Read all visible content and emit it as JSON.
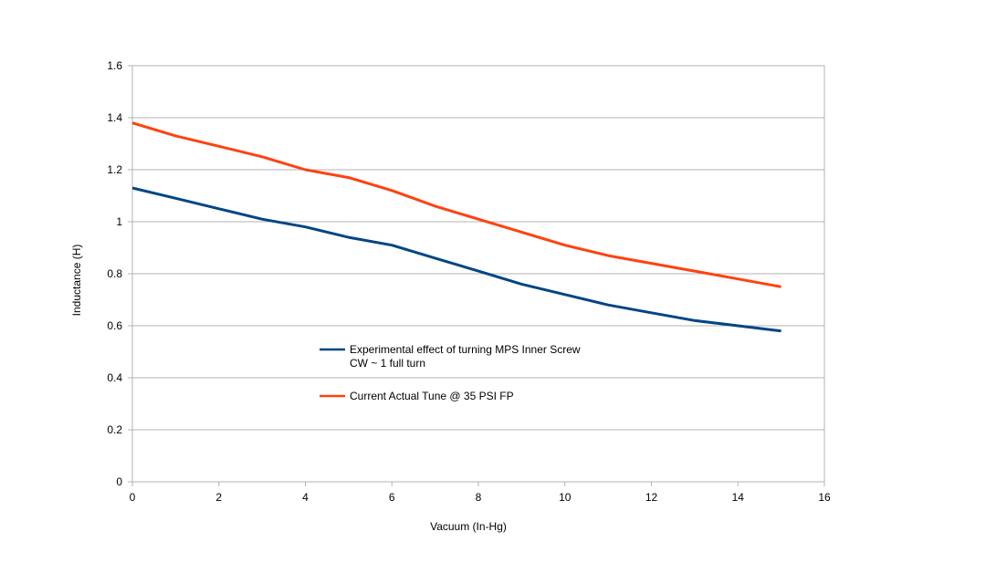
{
  "chart_data": {
    "type": "line",
    "title": "",
    "xlabel": "Vacuum (In-Hg)",
    "ylabel": "Inductance (H)",
    "xlim": [
      0,
      16
    ],
    "ylim": [
      0,
      1.6
    ],
    "x_ticks": [
      0,
      2,
      4,
      6,
      8,
      10,
      12,
      14,
      16
    ],
    "y_ticks": [
      0,
      0.2,
      0.4,
      0.6,
      0.8,
      1,
      1.2,
      1.4,
      1.6
    ],
    "x_tick_labels": [
      "0",
      "2",
      "4",
      "6",
      "8",
      "10",
      "12",
      "14",
      "16"
    ],
    "y_tick_labels": [
      "0",
      "0.2",
      "0.4",
      "0.6",
      "0.8",
      "1",
      "1.2",
      "1.4",
      "1.6"
    ],
    "grid": "horizontal",
    "legend_position": "center",
    "series": [
      {
        "name": "Experimental effect of turning MPS Inner Screw CW ~ 1 full turn",
        "legend_lines": [
          "Experimental effect of turning MPS Inner Screw",
          "CW ~ 1 full turn"
        ],
        "color": "#004586",
        "x": [
          0,
          1,
          2,
          3,
          4,
          5,
          6,
          7,
          8,
          9,
          10,
          11,
          12,
          13,
          14,
          15
        ],
        "y": [
          1.13,
          1.09,
          1.05,
          1.01,
          0.98,
          0.94,
          0.91,
          0.86,
          0.81,
          0.76,
          0.72,
          0.68,
          0.65,
          0.62,
          0.6,
          0.58
        ]
      },
      {
        "name": "Current Actual Tune @ 35 PSI FP",
        "legend_lines": [
          "Current Actual Tune @ 35 PSI FP"
        ],
        "color": "#ff420e",
        "x": [
          0,
          1,
          2,
          3,
          4,
          5,
          6,
          7,
          8,
          9,
          10,
          11,
          12,
          13,
          14,
          15
        ],
        "y": [
          1.38,
          1.33,
          1.29,
          1.25,
          1.2,
          1.17,
          1.12,
          1.06,
          1.01,
          0.96,
          0.91,
          0.87,
          0.84,
          0.81,
          0.78,
          0.75
        ]
      }
    ]
  }
}
